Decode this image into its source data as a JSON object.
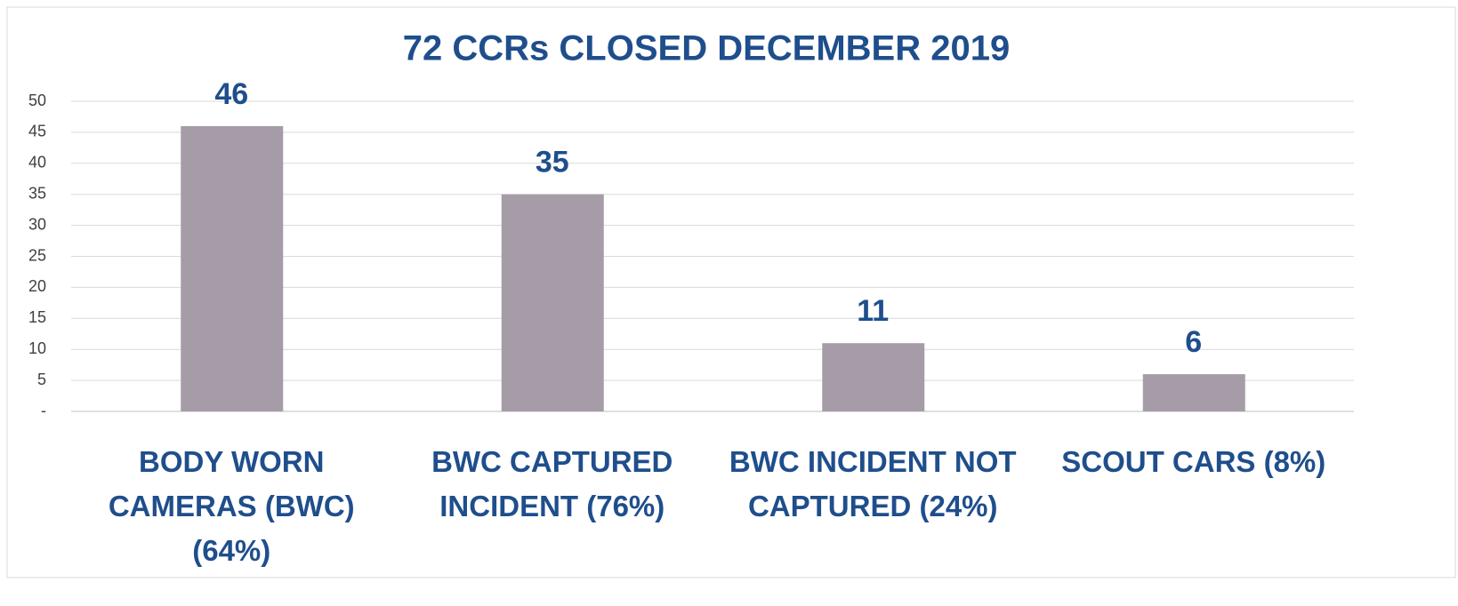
{
  "chart_data": {
    "type": "bar",
    "title": "72 CCRs CLOSED DECEMBER 2019",
    "categories": [
      "BODY WORN CAMERAS (BWC) (64%)",
      "BWC CAPTURED INCIDENT (76%)",
      "BWC INCIDENT NOT CAPTURED (24%)",
      "SCOUT CARS (8%)"
    ],
    "values": [
      46,
      35,
      11,
      6
    ],
    "color": "#a69ca8",
    "ylim": [
      0,
      50
    ],
    "yticks": [
      {
        "value": 0,
        "label": "-"
      },
      5,
      10,
      15,
      20,
      25,
      30,
      35,
      40,
      45,
      50
    ],
    "grid": true
  }
}
